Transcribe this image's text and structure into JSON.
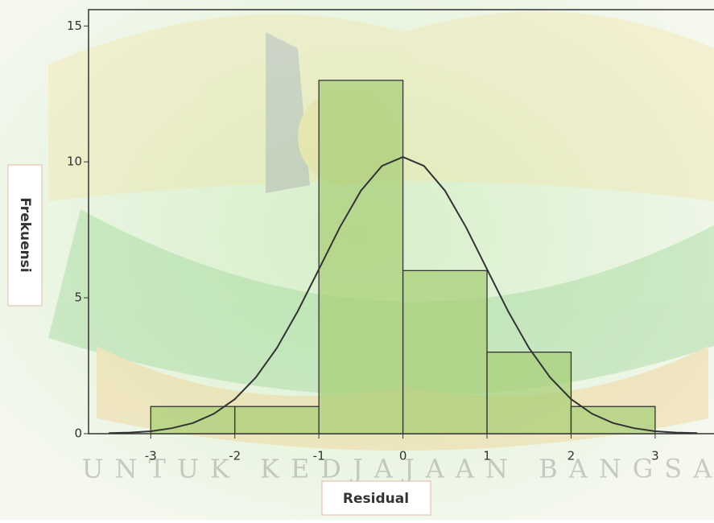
{
  "chart_data": {
    "type": "histogram",
    "y_label": "Frekuensi",
    "x_label": "Residual",
    "watermark": "UNTUK KEDJAJAAN BANGSA",
    "bins": [
      -3,
      -2,
      -1,
      0,
      1,
      2,
      3
    ],
    "values": [
      1,
      1,
      13,
      6,
      3,
      1
    ],
    "color": "#a9cf7a",
    "normal_curve": {
      "color": "#333333",
      "x": [
        -3.5,
        -3.25,
        -3,
        -2.75,
        -2.5,
        -2.25,
        -2,
        -1.75,
        -1.5,
        -1.25,
        -1,
        -0.75,
        -0.5,
        -0.25,
        0,
        0.25,
        0.5,
        0.75,
        1,
        1.25,
        1.5,
        1.75,
        2,
        2.25,
        2.5,
        2.75,
        3,
        3.25,
        3.5
      ],
      "values": [
        0.02,
        0.04,
        0.09,
        0.2,
        0.39,
        0.73,
        1.27,
        2.07,
        3.15,
        4.51,
        6.05,
        7.6,
        8.94,
        9.85,
        10.18,
        9.85,
        8.94,
        7.6,
        6.05,
        4.51,
        3.15,
        2.07,
        1.27,
        0.73,
        0.39,
        0.2,
        0.09,
        0.04,
        0.02
      ]
    },
    "xlim": [
      -3.74,
      3.7
    ],
    "xticks": [
      -3,
      -2,
      -1,
      0,
      1,
      2,
      3
    ],
    "ylim": [
      0,
      15.6
    ],
    "yticks": [
      0,
      5,
      10,
      15
    ]
  }
}
